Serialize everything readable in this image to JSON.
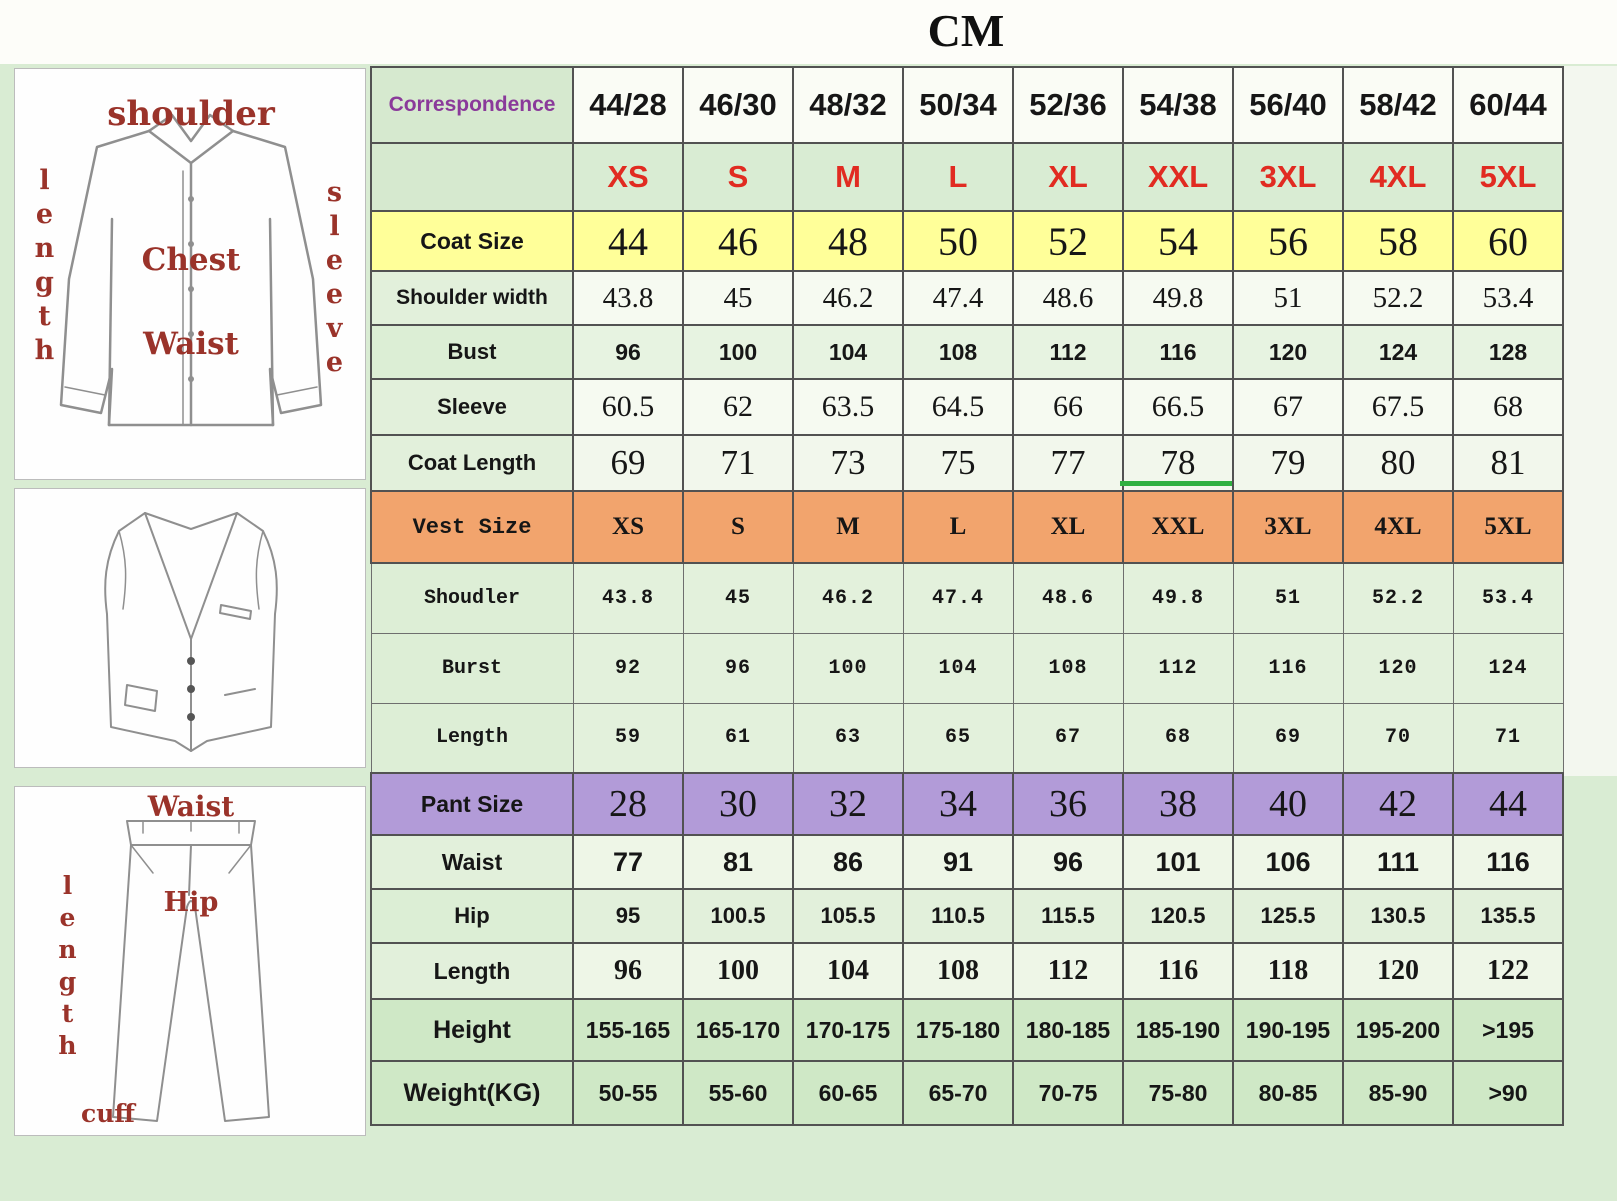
{
  "title": "CM",
  "diagrams": {
    "coat": {
      "shoulder": "shoulder",
      "length": "length",
      "sleeve": "sleeve",
      "chest": "Chest",
      "waist": "Waist"
    },
    "pants": {
      "waist": "Waist",
      "length": "length",
      "hip": "Hip",
      "cuff": "cuff"
    }
  },
  "colors": {
    "background": "#d9ecd3",
    "coat_size_row": "#ffff99",
    "vest_size_row": "#f2a46d",
    "pant_size_row": "#b29bd8",
    "height_weight_rows": "#cfe8c6",
    "size_label_text": "#e12b21",
    "correspondence_text": "#8a3a9a",
    "diagram_label_text": "#9a332a"
  },
  "chart_data": {
    "type": "table",
    "title": "CM",
    "header": {
      "key": "correspondence",
      "style": "header",
      "label": "Correspondence",
      "values": [
        "44/28",
        "46/30",
        "48/32",
        "50/34",
        "52/36",
        "54/38",
        "56/40",
        "58/42",
        "60/44"
      ]
    },
    "rows": [
      {
        "key": "intl-size",
        "style": "size",
        "label": "",
        "values": [
          "XS",
          "S",
          "M",
          "L",
          "XL",
          "XXL",
          "3XL",
          "4XL",
          "5XL"
        ]
      },
      {
        "key": "coat-size",
        "style": "coatsize",
        "label": "Coat Size",
        "values": [
          "44",
          "46",
          "48",
          "50",
          "52",
          "54",
          "56",
          "58",
          "60"
        ]
      },
      {
        "key": "shoulder-width",
        "style": "shoulder",
        "label": "Shoulder width",
        "values": [
          "43.8",
          "45",
          "46.2",
          "47.4",
          "48.6",
          "49.8",
          "51",
          "52.2",
          "53.4"
        ]
      },
      {
        "key": "bust",
        "style": "bust",
        "label": "Bust",
        "values": [
          "96",
          "100",
          "104",
          "108",
          "112",
          "116",
          "120",
          "124",
          "128"
        ]
      },
      {
        "key": "sleeve",
        "style": "sleeve",
        "label": "Sleeve",
        "values": [
          "60.5",
          "62",
          "63.5",
          "64.5",
          "66",
          "66.5",
          "67",
          "67.5",
          "68"
        ]
      },
      {
        "key": "coat-length",
        "style": "coatlen",
        "label": "Coat Length",
        "values": [
          "69",
          "71",
          "73",
          "75",
          "77",
          "78",
          "79",
          "80",
          "81"
        ]
      },
      {
        "key": "vest-size",
        "style": "vestsize",
        "label": "Vest Size",
        "values": [
          "XS",
          "S",
          "M",
          "L",
          "XL",
          "XXL",
          "3XL",
          "4XL",
          "5XL"
        ]
      },
      {
        "key": "vest-shoulder",
        "style": "vestdata",
        "label": "Shoudler",
        "values": [
          "43.8",
          "45",
          "46.2",
          "47.4",
          "48.6",
          "49.8",
          "51",
          "52.2",
          "53.4"
        ]
      },
      {
        "key": "vest-bust",
        "style": "vestdata",
        "label": "Burst",
        "values": [
          "92",
          "96",
          "100",
          "104",
          "108",
          "112",
          "116",
          "120",
          "124"
        ]
      },
      {
        "key": "vest-length",
        "style": "vestdata",
        "label": "Length",
        "values": [
          "59",
          "61",
          "63",
          "65",
          "67",
          "68",
          "69",
          "70",
          "71"
        ]
      },
      {
        "key": "pant-size",
        "style": "pantsize",
        "label": "Pant Size",
        "values": [
          "28",
          "30",
          "32",
          "34",
          "36",
          "38",
          "40",
          "42",
          "44"
        ]
      },
      {
        "key": "waist",
        "style": "waist",
        "label": "Waist",
        "values": [
          "77",
          "81",
          "86",
          "91",
          "96",
          "101",
          "106",
          "111",
          "116"
        ]
      },
      {
        "key": "hip",
        "style": "hip",
        "label": "Hip",
        "values": [
          "95",
          "100.5",
          "105.5",
          "110.5",
          "115.5",
          "120.5",
          "125.5",
          "130.5",
          "135.5"
        ]
      },
      {
        "key": "pant-length",
        "style": "pantlen",
        "label": "Length",
        "values": [
          "96",
          "100",
          "104",
          "108",
          "112",
          "116",
          "118",
          "120",
          "122"
        ]
      },
      {
        "key": "height",
        "style": "height",
        "label": "Height",
        "values": [
          "155-165",
          "165-170",
          "170-175",
          "175-180",
          "180-185",
          "185-190",
          "190-195",
          "195-200",
          ">195"
        ]
      },
      {
        "key": "weight",
        "style": "weight",
        "label": "Weight(KG)",
        "values": [
          "50-55",
          "55-60",
          "60-65",
          "65-70",
          "70-75",
          "75-80",
          "80-85",
          "85-90",
          ">90"
        ]
      }
    ]
  }
}
